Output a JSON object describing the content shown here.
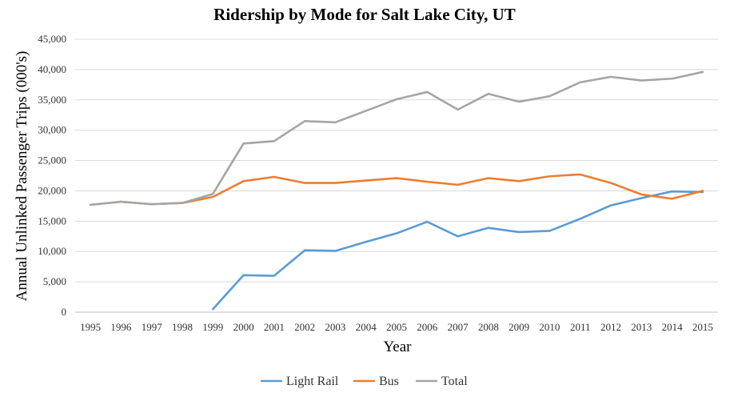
{
  "chart_data": {
    "type": "line",
    "title": "Ridership by Mode for Salt Lake City, UT",
    "xlabel": "Year",
    "ylabel": "Annual Unlinked Passenger Trips (000's)",
    "ylim": [
      0,
      45000
    ],
    "yticks": [
      0,
      5000,
      10000,
      15000,
      20000,
      25000,
      30000,
      35000,
      40000,
      45000
    ],
    "ytick_labels": [
      "0",
      "5,000",
      "10,000",
      "15,000",
      "20,000",
      "25,000",
      "30,000",
      "35,000",
      "40,000",
      "45,000"
    ],
    "x": [
      "1995",
      "1996",
      "1997",
      "1998",
      "1999",
      "2000",
      "2001",
      "2002",
      "2003",
      "2004",
      "2005",
      "2006",
      "2007",
      "2008",
      "2009",
      "2010",
      "2011",
      "2012",
      "2013",
      "2014",
      "2015"
    ],
    "grid": "horizontal",
    "legend_position": "bottom",
    "series": [
      {
        "name": "Light Rail",
        "color": "#5B9BD5",
        "values": [
          null,
          null,
          null,
          null,
          500,
          6100,
          6000,
          10200,
          10100,
          11600,
          13000,
          14900,
          12500,
          13900,
          13200,
          13400,
          15400,
          17600,
          18800,
          19900,
          19800
        ]
      },
      {
        "name": "Bus",
        "color": "#ED7D31",
        "values": [
          17700,
          18200,
          17800,
          18000,
          19000,
          21600,
          22300,
          21300,
          21300,
          21700,
          22100,
          21500,
          21000,
          22100,
          21600,
          22400,
          22700,
          21300,
          19400,
          18700,
          20000
        ]
      },
      {
        "name": "Total",
        "color": "#A5A5A5",
        "values": [
          17700,
          18200,
          17800,
          18000,
          19500,
          27800,
          28200,
          31500,
          31300,
          33200,
          35100,
          36300,
          33400,
          36000,
          34700,
          35600,
          37900,
          38800,
          38200,
          38500,
          39600
        ]
      }
    ]
  }
}
